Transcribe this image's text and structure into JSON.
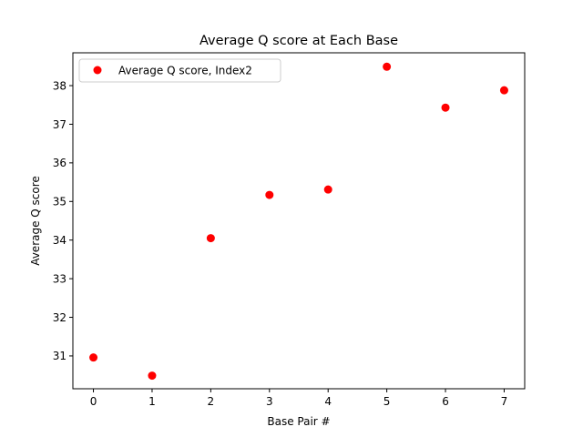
{
  "chart_data": {
    "type": "scatter",
    "title": "Average Q score at Each Base",
    "xlabel": "Base Pair #",
    "ylabel": "Average Q score",
    "xlim": [
      -0.35,
      7.35
    ],
    "ylim": [
      30.15,
      38.85
    ],
    "xticks": [
      0,
      1,
      2,
      3,
      4,
      5,
      6,
      7
    ],
    "yticks": [
      31,
      32,
      33,
      34,
      35,
      36,
      37,
      38
    ],
    "grid": false,
    "legend_position": "top-left",
    "series": [
      {
        "name": "Average Q score, Index2",
        "color": "#ff0000",
        "x": [
          0,
          1,
          2,
          3,
          4,
          5,
          6,
          7
        ],
        "y": [
          30.96,
          30.49,
          34.05,
          35.17,
          35.31,
          38.49,
          37.43,
          37.88
        ]
      }
    ]
  }
}
